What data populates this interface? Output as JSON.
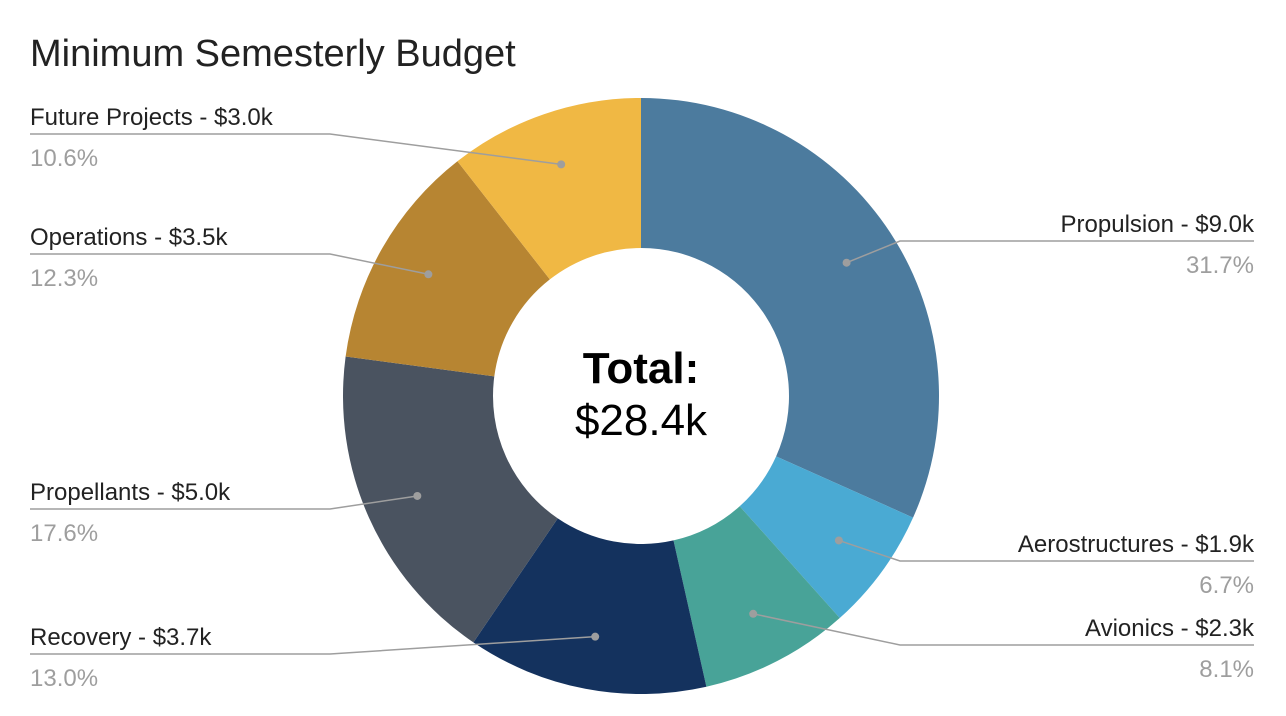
{
  "chart_data": {
    "type": "pie",
    "donut": true,
    "title": "Minimum Semesterly Budget",
    "center_label": "Total:",
    "center_value": "$28.4k",
    "slices": [
      {
        "label": "Propulsion - $9.0k",
        "value": 9.0,
        "percent": "31.7%",
        "color": "#4c7b9e"
      },
      {
        "label": "Aerostructures - $1.9k",
        "value": 1.9,
        "percent": "6.7%",
        "color": "#4aaad3"
      },
      {
        "label": "Avionics - $2.3k",
        "value": 2.3,
        "percent": "8.1%",
        "color": "#48a398"
      },
      {
        "label": "Recovery - $3.7k",
        "value": 3.7,
        "percent": "13.0%",
        "color": "#14325e"
      },
      {
        "label": "Propellants - $5.0k",
        "value": 5.0,
        "percent": "17.6%",
        "color": "#4a5360"
      },
      {
        "label": "Operations - $3.5k",
        "value": 3.5,
        "percent": "12.3%",
        "color": "#b78532"
      },
      {
        "label": "Future Projects - $3.0k",
        "value": 3.0,
        "percent": "10.6%",
        "color": "#f0b844"
      }
    ]
  }
}
